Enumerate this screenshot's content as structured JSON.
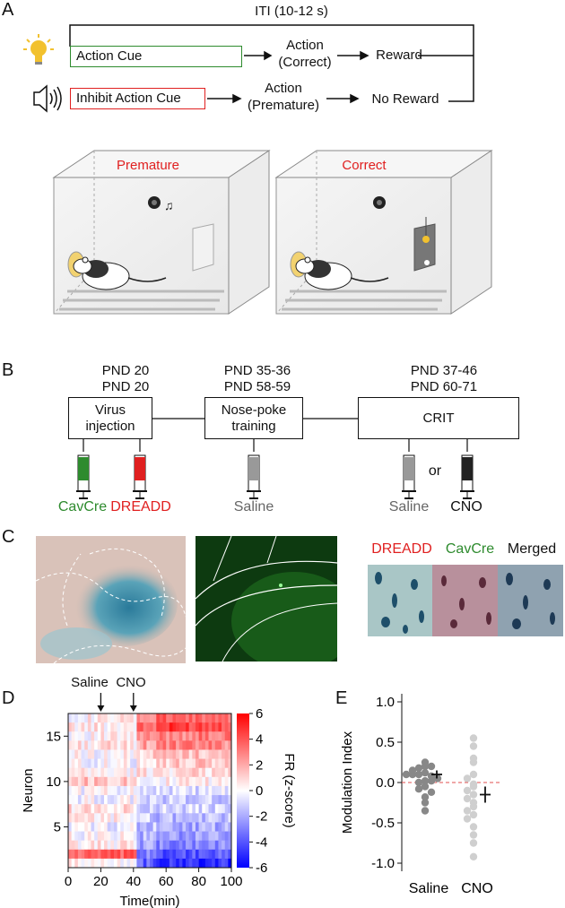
{
  "panel_a": {
    "letter": "A",
    "iti_label": "ITI (10-12 s)",
    "action_cue": "Action Cue",
    "inhibit_cue": "Inhibit Action Cue",
    "action_correct_l1": "Action",
    "action_correct_l2": "(Correct)",
    "action_premature_l1": "Action",
    "action_premature_l2": "(Premature)",
    "reward": "Reward",
    "no_reward": "No Reward",
    "box_left_title": "Premature",
    "box_right_title": "Correct",
    "colors": {
      "action_cue": "#2e8b2e",
      "inhibit_cue": "#e02020",
      "title_red": "#e02020",
      "bulb": "#f2c12e"
    }
  },
  "panel_b": {
    "letter": "B",
    "stage1_l1": "PND 20",
    "stage1_l2": "PND 20",
    "stage1_box_l1": "Virus",
    "stage1_box_l2": "injection",
    "stage2_l1": "PND 35-36",
    "stage2_l2": "PND 58-59",
    "stage2_box_l1": "Nose-poke",
    "stage2_box_l2": "training",
    "stage3_l1": "PND 37-46",
    "stage3_l2": "PND 60-71",
    "stage3_box": "CRIT",
    "syringe_cavcre": "CavCre",
    "syringe_dreadd": "DREADD",
    "syringe_saline1": "Saline",
    "syringe_saline2": "Saline",
    "or": "or",
    "syringe_cno": "CNO",
    "colors": {
      "cavcre": "#2e8b2e",
      "dreadd": "#e02020",
      "saline": "#999999",
      "cno": "#222222"
    }
  },
  "panel_c": {
    "letter": "C",
    "legend_dreadd": "DREADD",
    "legend_cavcre": "CavCre",
    "legend_merged": "Merged"
  },
  "panel_d": {
    "letter": "D",
    "arrow_saline": "Saline",
    "arrow_cno": "CNO"
  },
  "panel_e": {
    "letter": "E"
  },
  "chart_data": [
    {
      "type": "heatmap",
      "title": "",
      "xlabel": "Time(min)",
      "ylabel": "Neuron",
      "colorbar_label": "FR (z-score)",
      "x_ticks": [
        0,
        20,
        40,
        60,
        80,
        100
      ],
      "y_ticks": [
        5,
        10,
        15
      ],
      "colorbar_ticks": [
        6,
        4,
        2,
        0,
        -2,
        -4,
        -6
      ],
      "xlim": [
        0,
        100
      ],
      "n_neurons": 17,
      "n_bins": 50,
      "rows": [
        {
          "neuron": 17,
          "pre": 0.3,
          "post": 3.5
        },
        {
          "neuron": 16,
          "pre": 0.5,
          "post": 4.5
        },
        {
          "neuron": 15,
          "pre": 0.2,
          "post": 3.0
        },
        {
          "neuron": 14,
          "pre": 0.6,
          "post": 2.8
        },
        {
          "neuron": 13,
          "pre": 0.1,
          "post": 1.5
        },
        {
          "neuron": 12,
          "pre": -0.1,
          "post": 1.2
        },
        {
          "neuron": 11,
          "pre": 0.2,
          "post": 0.8
        },
        {
          "neuron": 10,
          "pre": 1.5,
          "post": 0.2
        },
        {
          "neuron": 9,
          "pre": 0.0,
          "post": -0.8
        },
        {
          "neuron": 8,
          "pre": -0.2,
          "post": -1.2
        },
        {
          "neuron": 7,
          "pre": 0.8,
          "post": -1.0
        },
        {
          "neuron": 6,
          "pre": 0.3,
          "post": -1.6
        },
        {
          "neuron": 5,
          "pre": -0.3,
          "post": -2.0
        },
        {
          "neuron": 4,
          "pre": 0.1,
          "post": -2.4
        },
        {
          "neuron": 3,
          "pre": 0.4,
          "post": -2.8
        },
        {
          "neuron": 2,
          "pre": 3.5,
          "post": -4.0
        },
        {
          "neuron": 1,
          "pre": 0.2,
          "post": -5.0
        }
      ]
    },
    {
      "type": "scatter",
      "title": "",
      "xlabel": "",
      "ylabel": "Modulation Index",
      "categories": [
        "Saline",
        "CNO"
      ],
      "ylim": [
        -1.1,
        1.1
      ],
      "y_ticks": [
        1.0,
        0.5,
        0.0,
        -0.5,
        -1.0
      ],
      "reference_line": 0.0,
      "series": [
        {
          "name": "Saline",
          "mean": 0.1,
          "sem": 0.05,
          "values": [
            0.25,
            0.2,
            0.18,
            0.2,
            0.15,
            0.12,
            0.1,
            0.08,
            0.1,
            0.05,
            0.02,
            0.0,
            0.02,
            -0.05,
            -0.08,
            -0.12,
            -0.18,
            -0.25,
            -0.35,
            0.1
          ]
        },
        {
          "name": "CNO",
          "mean": -0.15,
          "sem": 0.1,
          "values": [
            0.55,
            0.45,
            0.3,
            0.25,
            0.1,
            0.05,
            -0.05,
            -0.1,
            -0.15,
            -0.2,
            -0.25,
            -0.3,
            -0.35,
            -0.4,
            -0.45,
            -0.55,
            -0.65,
            -0.75,
            -0.92,
            -0.02
          ]
        }
      ]
    }
  ]
}
